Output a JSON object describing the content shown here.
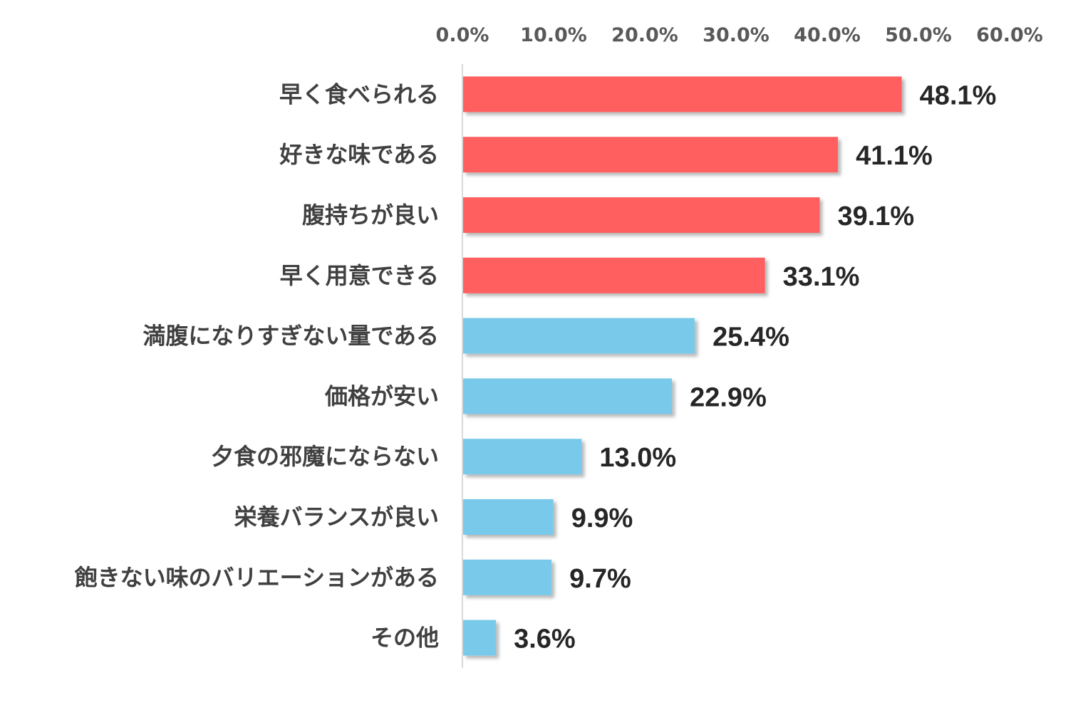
{
  "chart_data": {
    "type": "bar",
    "orientation": "horizontal",
    "categories": [
      "早く食べられる",
      "好きな味である",
      "腹持ちが良い",
      "早く用意できる",
      "満腹になりすぎない量である",
      "価格が安い",
      "夕食の邪魔にならない",
      "栄養バランスが良い",
      "飽きない味のバリエーションがある",
      "その他"
    ],
    "values": [
      48.1,
      41.1,
      39.1,
      33.1,
      25.4,
      22.9,
      13.0,
      9.9,
      9.7,
      3.6
    ],
    "data_labels": [
      "48.1%",
      "41.1%",
      "39.1%",
      "33.1%",
      "25.4%",
      "22.9%",
      "13.0%",
      "9.9%",
      "9.7%",
      "3.6%"
    ],
    "x_ticks": [
      "0.0%",
      "10.0%",
      "20.0%",
      "30.0%",
      "40.0%",
      "50.0%",
      "60.0%"
    ],
    "xlim": [
      0,
      60
    ],
    "x_axis_position": "top",
    "grid": false,
    "colors": {
      "highlight": "#FF5F5F",
      "normal": "#78C9EA",
      "axis": "#D9D9D9",
      "tick_text": "#595959",
      "category_text": "#404040",
      "label_text": "#262626"
    },
    "highlight_count": 4
  }
}
